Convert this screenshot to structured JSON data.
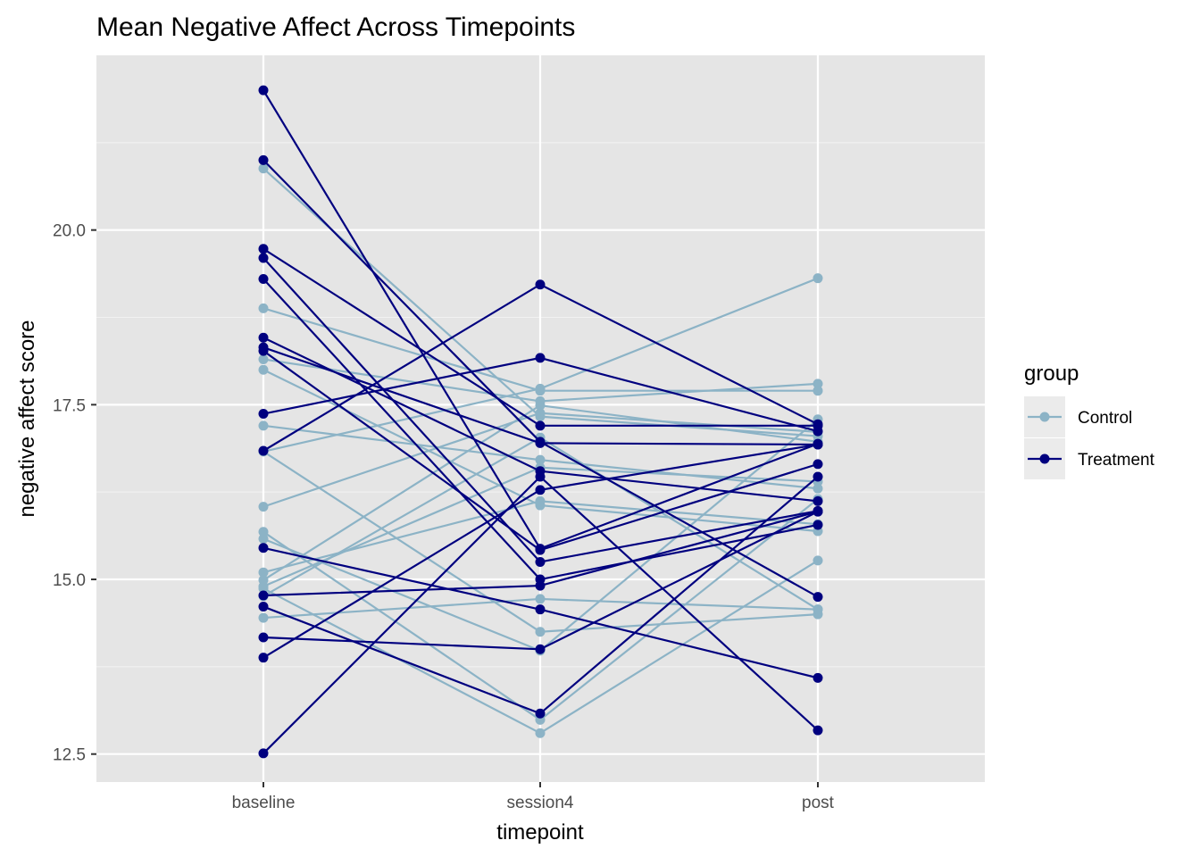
{
  "chart_data": {
    "type": "line",
    "title": "Mean Negative Affect Across Timepoints",
    "xlabel": "timepoint",
    "ylabel": "negative affect score",
    "categories": [
      "baseline",
      "session4",
      "post"
    ],
    "y_ticks": [
      "12.5",
      "15.0",
      "17.5",
      "20.0"
    ],
    "y_tick_values": [
      12.5,
      15.0,
      17.5,
      20.0
    ],
    "ylim": [
      12.1,
      22.5
    ],
    "grid": true,
    "legend": {
      "title": "group",
      "placement": "right",
      "entries": [
        {
          "label": "Control",
          "color": "#8cb3c6"
        },
        {
          "label": "Treatment",
          "color": "#00007f"
        }
      ]
    },
    "series": [
      {
        "group": "Control",
        "values": [
          20.88,
          17.33,
          17.05
        ]
      },
      {
        "group": "Control",
        "values": [
          18.88,
          17.7,
          17.7
        ]
      },
      {
        "group": "Control",
        "values": [
          18.15,
          17.55,
          17.8
        ]
      },
      {
        "group": "Control",
        "values": [
          18.0,
          16.06,
          15.69
        ]
      },
      {
        "group": "Control",
        "values": [
          17.2,
          16.71,
          16.3
        ]
      },
      {
        "group": "Control",
        "values": [
          16.83,
          17.73,
          19.31
        ]
      },
      {
        "group": "Control",
        "values": [
          16.83,
          14.25,
          14.5
        ]
      },
      {
        "group": "Control",
        "values": [
          16.04,
          17.38,
          17.11
        ]
      },
      {
        "group": "Control",
        "values": [
          15.68,
          12.99,
          16.15
        ]
      },
      {
        "group": "Control",
        "values": [
          15.58,
          13.98,
          17.29
        ]
      },
      {
        "group": "Control",
        "values": [
          15.1,
          16.12,
          15.79
        ]
      },
      {
        "group": "Control",
        "values": [
          14.99,
          17.49,
          16.97
        ]
      },
      {
        "group": "Control",
        "values": [
          14.87,
          12.8,
          15.27
        ]
      },
      {
        "group": "Control",
        "values": [
          14.76,
          17.03,
          14.57
        ]
      },
      {
        "group": "Control",
        "values": [
          14.45,
          14.72,
          14.57
        ]
      },
      {
        "group": "Control",
        "values": [
          14.9,
          16.6,
          16.4
        ]
      },
      {
        "group": "Treatment",
        "values": [
          22.0,
          15.44,
          16.94
        ]
      },
      {
        "group": "Treatment",
        "values": [
          21.0,
          16.97,
          14.75
        ]
      },
      {
        "group": "Treatment",
        "values": [
          19.73,
          17.2,
          17.2
        ]
      },
      {
        "group": "Treatment",
        "values": [
          19.6,
          15.25,
          15.98
        ]
      },
      {
        "group": "Treatment",
        "values": [
          19.3,
          15.0,
          15.78
        ]
      },
      {
        "group": "Treatment",
        "values": [
          18.46,
          16.55,
          16.12
        ]
      },
      {
        "group": "Treatment",
        "values": [
          18.32,
          16.95,
          16.93
        ]
      },
      {
        "group": "Treatment",
        "values": [
          18.27,
          15.42,
          16.65
        ]
      },
      {
        "group": "Treatment",
        "values": [
          17.37,
          18.17,
          17.12
        ]
      },
      {
        "group": "Treatment",
        "values": [
          16.84,
          19.22,
          17.22
        ]
      },
      {
        "group": "Treatment",
        "values": [
          15.45,
          14.57,
          13.59
        ]
      },
      {
        "group": "Treatment",
        "values": [
          14.77,
          14.91,
          15.97
        ]
      },
      {
        "group": "Treatment",
        "values": [
          14.61,
          13.08,
          16.47
        ]
      },
      {
        "group": "Treatment",
        "values": [
          14.17,
          14.0,
          15.97
        ]
      },
      {
        "group": "Treatment",
        "values": [
          13.88,
          16.28,
          16.93
        ]
      },
      {
        "group": "Treatment",
        "values": [
          12.51,
          16.47,
          12.84
        ]
      }
    ]
  }
}
